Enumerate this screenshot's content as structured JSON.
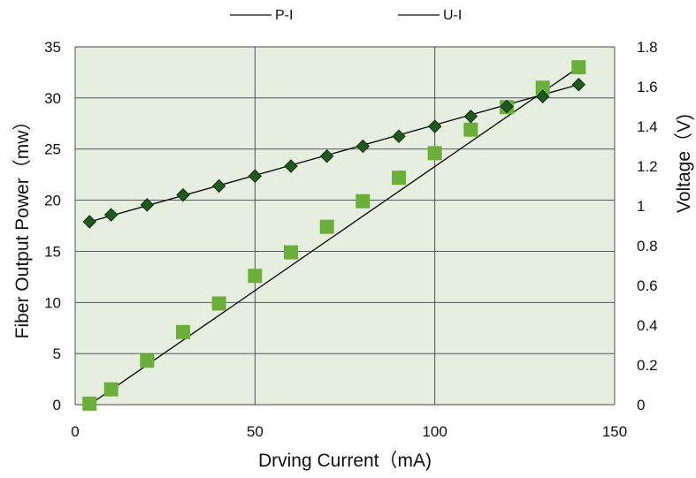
{
  "chart_data": {
    "type": "scatter",
    "x_axis": {
      "label": "Drving Current（mA)",
      "range": [
        0,
        150
      ],
      "ticks": [
        0,
        50,
        100,
        150
      ]
    },
    "y_axis_left": {
      "label": "Fiber Output Power（mw）",
      "range": [
        0,
        35
      ],
      "ticks": [
        0,
        5,
        10,
        15,
        20,
        25,
        30,
        35
      ]
    },
    "y_axis_right": {
      "label": "Voltage（V)",
      "range": [
        0,
        1.8
      ],
      "ticks": [
        "0",
        "0.2",
        "0.4",
        "0.6",
        "0.8",
        "1",
        "1.2",
        "1.4",
        "1.6",
        "1.8"
      ]
    },
    "grid": true,
    "legend_position": "top",
    "series": [
      {
        "name": "P-I",
        "axis": "left",
        "marker": "square",
        "color": "#6aaf3a",
        "points": [
          {
            "x": 4,
            "y": 0.1
          },
          {
            "x": 10,
            "y": 1.5
          },
          {
            "x": 20,
            "y": 4.3
          },
          {
            "x": 30,
            "y": 7.1
          },
          {
            "x": 40,
            "y": 9.9
          },
          {
            "x": 50,
            "y": 12.6
          },
          {
            "x": 60,
            "y": 14.9
          },
          {
            "x": 70,
            "y": 17.4
          },
          {
            "x": 80,
            "y": 19.9
          },
          {
            "x": 90,
            "y": 22.2
          },
          {
            "x": 100,
            "y": 24.6
          },
          {
            "x": 110,
            "y": 26.9
          },
          {
            "x": 120,
            "y": 29.1
          },
          {
            "x": 130,
            "y": 31.0
          },
          {
            "x": 140,
            "y": 33.0
          }
        ],
        "fit_line": [
          {
            "x": 4,
            "y": 0
          },
          {
            "x": 140,
            "y": 33.0
          }
        ]
      },
      {
        "name": "U-I",
        "axis": "right",
        "marker": "diamond",
        "color": "#1f5a1f",
        "points": [
          {
            "x": 4,
            "y": 0.92
          },
          {
            "x": 10,
            "y": 0.955
          },
          {
            "x": 20,
            "y": 1.005
          },
          {
            "x": 30,
            "y": 1.055
          },
          {
            "x": 40,
            "y": 1.1
          },
          {
            "x": 50,
            "y": 1.15
          },
          {
            "x": 60,
            "y": 1.2
          },
          {
            "x": 70,
            "y": 1.25
          },
          {
            "x": 80,
            "y": 1.3
          },
          {
            "x": 90,
            "y": 1.35
          },
          {
            "x": 100,
            "y": 1.4
          },
          {
            "x": 110,
            "y": 1.45
          },
          {
            "x": 120,
            "y": 1.5
          },
          {
            "x": 130,
            "y": 1.55
          },
          {
            "x": 140,
            "y": 1.61
          }
        ],
        "fit_line": [
          {
            "x": 4,
            "y": 0.92
          },
          {
            "x": 140,
            "y": 1.61
          }
        ]
      }
    ]
  },
  "colors": {
    "plot_background": "#e6efdf",
    "grid": "#444444",
    "fit_line": "#111111"
  }
}
